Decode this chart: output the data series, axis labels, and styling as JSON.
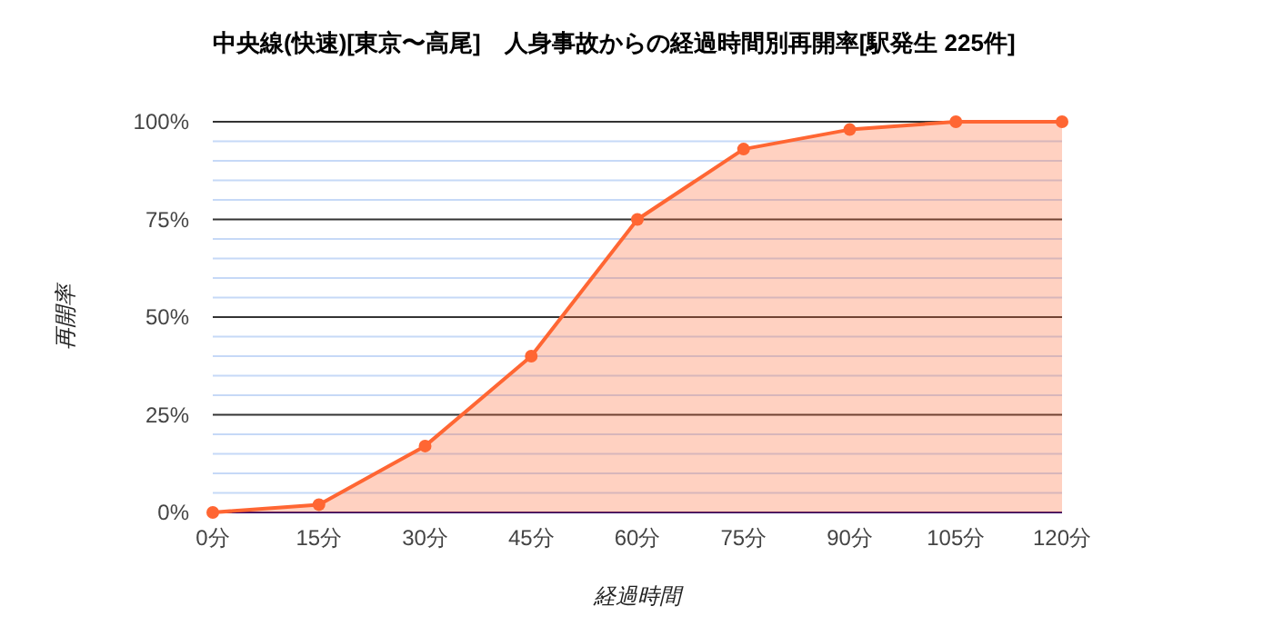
{
  "chart_data": {
    "type": "area",
    "title": "中央線(快速)[東京〜高尾]　人身事故からの経過時間別再開率[駅発生 225件]",
    "xlabel": "経過時間",
    "ylabel": "再開率",
    "categories": [
      "0分",
      "15分",
      "30分",
      "45分",
      "60分",
      "75分",
      "90分",
      "105分",
      "120分"
    ],
    "series": [
      {
        "color": "#ff6633",
        "values": [
          0,
          2,
          17,
          40,
          75,
          93,
          98,
          100,
          100
        ]
      }
    ],
    "ylim": [
      0,
      100
    ],
    "yticks": [
      {
        "value": 0,
        "label": "0%"
      },
      {
        "value": 5,
        "label": null
      },
      {
        "value": 10,
        "label": null
      },
      {
        "value": 15,
        "label": null
      },
      {
        "value": 20,
        "label": null
      },
      {
        "value": 25,
        "label": "25%"
      },
      {
        "value": 30,
        "label": null
      },
      {
        "value": 35,
        "label": null
      },
      {
        "value": 40,
        "label": null
      },
      {
        "value": 45,
        "label": null
      },
      {
        "value": 50,
        "label": "50%"
      },
      {
        "value": 55,
        "label": null
      },
      {
        "value": 60,
        "label": null
      },
      {
        "value": 65,
        "label": null
      },
      {
        "value": 70,
        "label": null
      },
      {
        "value": 75,
        "label": "75%"
      },
      {
        "value": 80,
        "label": null
      },
      {
        "value": 85,
        "label": null
      },
      {
        "value": 90,
        "label": null
      },
      {
        "value": 95,
        "label": null
      },
      {
        "value": 100,
        "label": "100%"
      }
    ],
    "grid": "y",
    "marker": "circle",
    "line_style": "solid"
  }
}
